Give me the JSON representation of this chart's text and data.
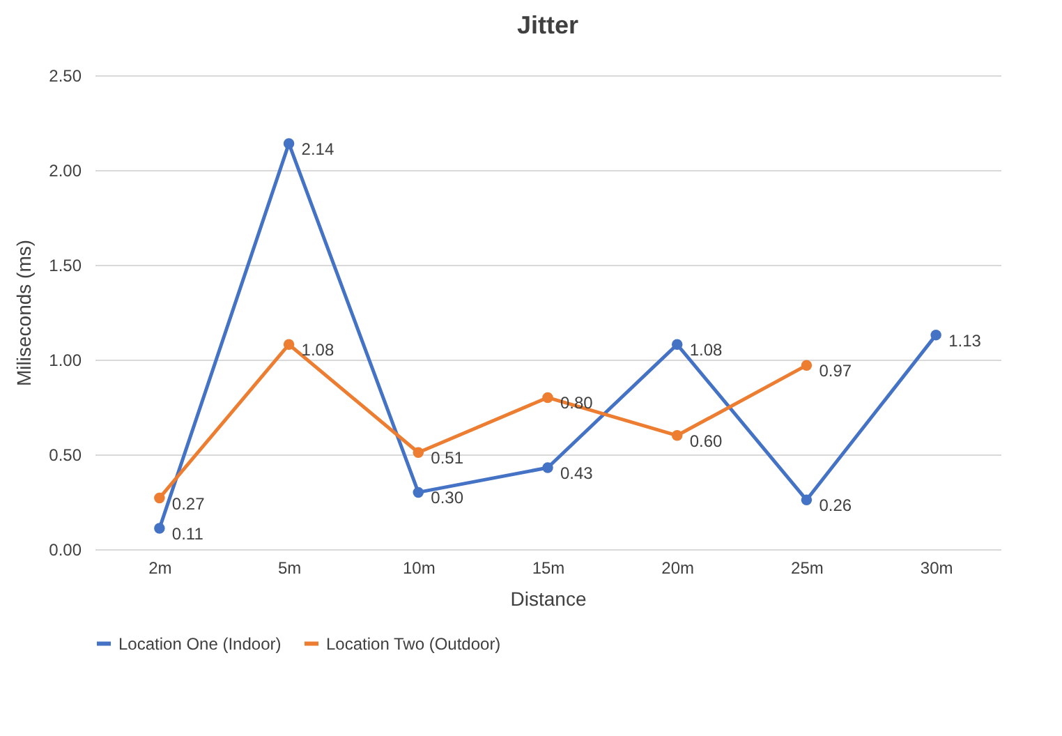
{
  "chart_data": {
    "type": "line",
    "title": "Jitter",
    "xlabel": "Distance",
    "ylabel": "Miliseconds (ms)",
    "categories": [
      "2m",
      "5m",
      "10m",
      "15m",
      "20m",
      "25m",
      "30m"
    ],
    "series": [
      {
        "name": "Location One (Indoor)",
        "color": "#4472c4",
        "values": [
          0.11,
          2.14,
          0.3,
          0.43,
          1.08,
          0.26,
          1.13
        ],
        "value_labels": [
          "0.11",
          "2.14",
          "0.30",
          "0.43",
          "1.08",
          "0.26",
          "1.13"
        ]
      },
      {
        "name": "Location Two (Outdoor)",
        "color": "#ed7d31",
        "values": [
          0.27,
          1.08,
          0.51,
          0.8,
          0.6,
          0.97,
          null
        ],
        "value_labels": [
          "0.27",
          "1.08",
          "0.51",
          "0.80",
          "0.60",
          "0.97",
          null
        ]
      }
    ],
    "ylim": [
      0,
      2.5
    ],
    "yticks": [
      {
        "value": 0,
        "label": "0.00"
      },
      {
        "value": 0.5,
        "label": "0.50"
      },
      {
        "value": 1,
        "label": "1.00"
      },
      {
        "value": 1.5,
        "label": "1.50"
      },
      {
        "value": 2,
        "label": "2.00"
      },
      {
        "value": 2.5,
        "label": "2.50"
      }
    ],
    "grid": "y",
    "legend": "bottom",
    "marker": "circle",
    "line_style": "solid"
  }
}
